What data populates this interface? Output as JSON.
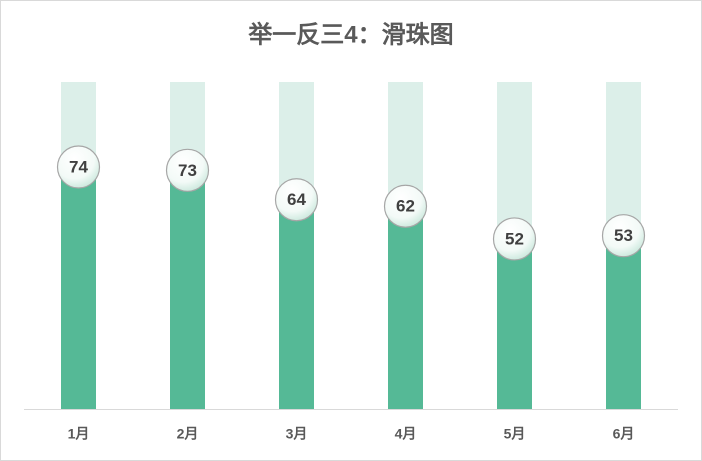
{
  "chart_data": {
    "type": "bar",
    "title": "举一反三4：滑珠图",
    "categories": [
      "1月",
      "2月",
      "3月",
      "4月",
      "5月",
      "6月"
    ],
    "values": [
      74,
      73,
      64,
      62,
      52,
      53
    ],
    "color": "#55b996",
    "track_color": "#dcefe9",
    "ylim": [
      0,
      100
    ]
  }
}
